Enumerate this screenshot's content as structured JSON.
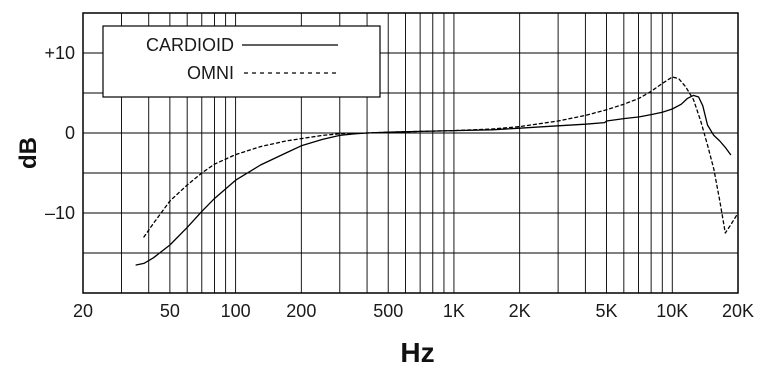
{
  "chart_data": {
    "type": "line",
    "title": "",
    "xlabel": "Hz",
    "ylabel": "dB",
    "x_scale": "log",
    "xlim": [
      20,
      20000
    ],
    "ylim": [
      -20,
      15
    ],
    "grid": true,
    "legend_position": "top-left",
    "x_tick_values": [
      20,
      50,
      100,
      200,
      500,
      1000,
      2000,
      5000,
      10000,
      20000
    ],
    "x_tick_labels": [
      "20",
      "50",
      "100",
      "200",
      "500",
      "1K",
      "2K",
      "5K",
      "10K",
      "20K"
    ],
    "y_tick_values": [
      10,
      0,
      -10
    ],
    "y_tick_labels": [
      "+10",
      "0",
      "–10"
    ],
    "x_gridlines": [
      20,
      30,
      40,
      50,
      60,
      70,
      80,
      90,
      100,
      200,
      300,
      400,
      500,
      600,
      700,
      800,
      900,
      1000,
      2000,
      3000,
      4000,
      5000,
      6000,
      7000,
      8000,
      9000,
      10000,
      20000
    ],
    "y_gridlines": [
      15,
      10,
      5,
      0,
      -5,
      -10,
      -15,
      -20
    ],
    "series": [
      {
        "name": "CARDIOID",
        "style": "solid",
        "color": "#000000",
        "points": [
          [
            35,
            -16.5
          ],
          [
            38,
            -16.3
          ],
          [
            42,
            -15.6
          ],
          [
            50,
            -14.0
          ],
          [
            60,
            -11.8
          ],
          [
            70,
            -9.8
          ],
          [
            80,
            -8.2
          ],
          [
            100,
            -5.9
          ],
          [
            130,
            -4.0
          ],
          [
            170,
            -2.5
          ],
          [
            200,
            -1.6
          ],
          [
            250,
            -0.8
          ],
          [
            300,
            -0.3
          ],
          [
            350,
            -0.1
          ],
          [
            400,
            0.0
          ],
          [
            500,
            0.1
          ],
          [
            700,
            0.2
          ],
          [
            1000,
            0.3
          ],
          [
            1500,
            0.4
          ],
          [
            2000,
            0.6
          ],
          [
            3000,
            0.9
          ],
          [
            4000,
            1.1
          ],
          [
            4900,
            1.3
          ],
          [
            5000,
            1.5
          ],
          [
            6000,
            1.8
          ],
          [
            7000,
            2.0
          ],
          [
            8000,
            2.3
          ],
          [
            9000,
            2.6
          ],
          [
            10000,
            3.0
          ],
          [
            11000,
            3.6
          ],
          [
            11700,
            4.3
          ],
          [
            12500,
            4.7
          ],
          [
            13200,
            4.5
          ],
          [
            13800,
            3.4
          ],
          [
            14500,
            1.0
          ],
          [
            15500,
            -0.3
          ],
          [
            16500,
            -1.0
          ],
          [
            17500,
            -1.8
          ],
          [
            18500,
            -2.7
          ]
        ]
      },
      {
        "name": "OMNI",
        "style": "dashed",
        "color": "#000000",
        "points": [
          [
            38,
            -13.0
          ],
          [
            42,
            -11.3
          ],
          [
            50,
            -8.5
          ],
          [
            60,
            -6.5
          ],
          [
            70,
            -5.0
          ],
          [
            80,
            -3.9
          ],
          [
            100,
            -2.7
          ],
          [
            130,
            -1.7
          ],
          [
            170,
            -1.0
          ],
          [
            200,
            -0.7
          ],
          [
            250,
            -0.3
          ],
          [
            300,
            -0.1
          ],
          [
            400,
            0.0
          ],
          [
            500,
            0.1
          ],
          [
            700,
            0.2
          ],
          [
            1000,
            0.3
          ],
          [
            1500,
            0.5
          ],
          [
            2000,
            0.8
          ],
          [
            3000,
            1.5
          ],
          [
            4000,
            2.2
          ],
          [
            5000,
            2.9
          ],
          [
            6000,
            3.6
          ],
          [
            7000,
            4.3
          ],
          [
            8000,
            5.2
          ],
          [
            9000,
            6.2
          ],
          [
            10000,
            7.0
          ],
          [
            10700,
            6.8
          ],
          [
            11500,
            5.8
          ],
          [
            12500,
            4.2
          ],
          [
            13500,
            1.5
          ],
          [
            14500,
            -1.5
          ],
          [
            15500,
            -4.5
          ],
          [
            16500,
            -8.5
          ],
          [
            17500,
            -12.5
          ],
          [
            18500,
            -11.5
          ],
          [
            19500,
            -10.5
          ],
          [
            20000,
            -10.0
          ]
        ]
      }
    ]
  }
}
